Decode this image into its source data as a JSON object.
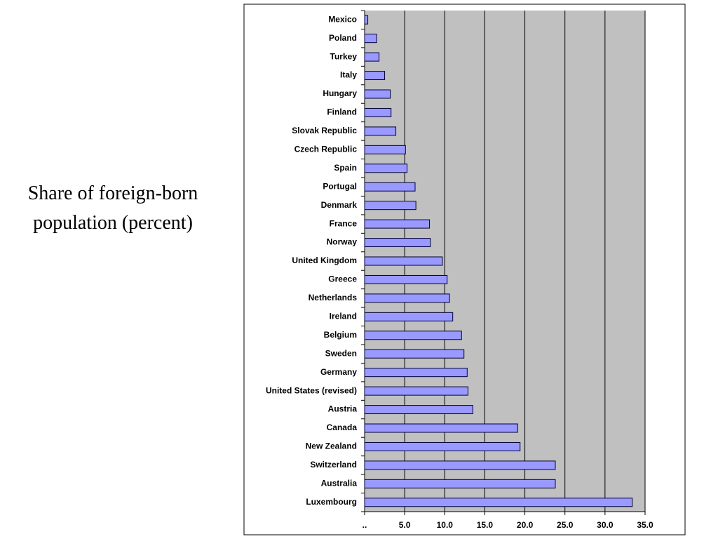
{
  "chart_data": {
    "type": "barh",
    "title": "Share of foreign-born population (percent)",
    "categories": [
      "Mexico",
      "Poland",
      "Turkey",
      "Italy",
      "Hungary",
      "Finland",
      "Slovak Republic",
      "Czech Republic",
      "Spain",
      "Portugal",
      "Denmark",
      "France",
      "Norway",
      "United Kingdom",
      "Greece",
      "Netherlands",
      "Ireland",
      "Belgium",
      "Sweden",
      "Germany",
      "United States (revised)",
      "Austria",
      "Canada",
      "New Zealand",
      "Switzerland",
      "Australia",
      "Luxembourg"
    ],
    "values": [
      0.4,
      1.5,
      1.8,
      2.5,
      3.2,
      3.3,
      3.9,
      5.1,
      5.3,
      6.3,
      6.4,
      8.1,
      8.2,
      9.7,
      10.3,
      10.6,
      11.0,
      12.1,
      12.4,
      12.8,
      12.9,
      13.5,
      19.1,
      19.4,
      23.8,
      23.8,
      33.4
    ],
    "color": "#9999ff",
    "xlim": [
      0,
      35
    ],
    "xticks": [
      {
        "value": 0,
        "label": ".."
      },
      {
        "value": 5,
        "label": "5.0"
      },
      {
        "value": 10,
        "label": "10.0"
      },
      {
        "value": 15,
        "label": "15.0"
      },
      {
        "value": 20,
        "label": "20.0"
      },
      {
        "value": 25,
        "label": "25.0"
      },
      {
        "value": 30,
        "label": "30.0"
      },
      {
        "value": 35,
        "label": "35.0"
      }
    ],
    "grid": true
  }
}
